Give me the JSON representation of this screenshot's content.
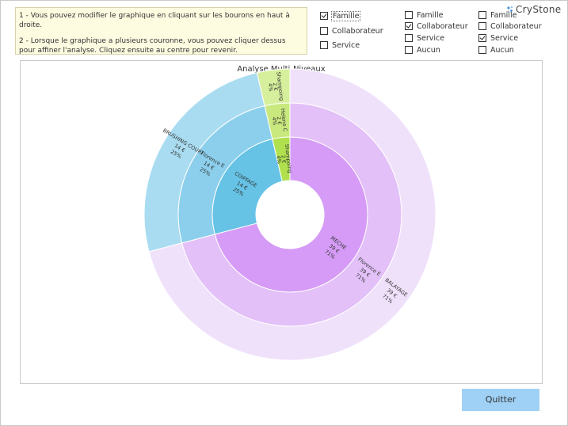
{
  "info": {
    "line1": "1 - Vous pouvez modifier le graphique en cliquant sur les bourons en haut à droite.",
    "line2": "2 - Lorsque le graphique a plusieurs couronne, vous pouvez cliquer dessus pour affiner l'analyse. Cliquez ensuite au centre pour revenir."
  },
  "level_groups": [
    {
      "options": [
        {
          "label": "Famille",
          "checked": true
        },
        {
          "label": "Collaborateur",
          "checked": false
        },
        {
          "label": "Service",
          "checked": false
        }
      ]
    },
    {
      "options": [
        {
          "label": "Famille",
          "checked": false
        },
        {
          "label": "Collaborateur",
          "checked": true
        },
        {
          "label": "Service",
          "checked": false
        },
        {
          "label": "Aucun",
          "checked": false
        }
      ]
    },
    {
      "options": [
        {
          "label": "Famille",
          "checked": false
        },
        {
          "label": "Collaborateur",
          "checked": false
        },
        {
          "label": "Service",
          "checked": true
        },
        {
          "label": "Aucun",
          "checked": false
        }
      ]
    }
  ],
  "brand": {
    "name": "CryStone",
    "icon": "sparkle-icon"
  },
  "chart_title": "Analyse Multi-Niveaux",
  "chart_data": {
    "type": "sunburst",
    "title": "Analyse Multi-Niveaux",
    "rings": [
      {
        "level": "Famille",
        "segments": [
          {
            "name": "MECHE",
            "value": 39,
            "unit": "€",
            "percent": "71%",
            "color": "#d59bf6"
          },
          {
            "name": "COIFFAGE",
            "value": 14,
            "unit": "€",
            "percent": "25%",
            "color": "#66c3e6"
          },
          {
            "name": "Shampoing",
            "value": 2,
            "unit": "€",
            "percent": "4%",
            "color": "#b1e04f"
          }
        ]
      },
      {
        "level": "Collaborateur",
        "segments": [
          {
            "name": "Florence E",
            "value": 39,
            "unit": "€",
            "percent": "71%",
            "color": "#e3c0f8"
          },
          {
            "name": "Florence E",
            "value": 14,
            "unit": "€",
            "percent": "25%",
            "color": "#8ccfec"
          },
          {
            "name": "Helene C",
            "value": 2,
            "unit": "€",
            "percent": "4%",
            "color": "#c9e87e"
          }
        ]
      },
      {
        "level": "Service",
        "segments": [
          {
            "name": "BALAYAGE",
            "value": 39,
            "unit": "€",
            "percent": "71%",
            "color": "#f0e1fb"
          },
          {
            "name": "BRUSHING COURT",
            "value": 14,
            "unit": "€",
            "percent": "25%",
            "color": "#a9dcf1"
          },
          {
            "name": "Shampoing",
            "value": 2,
            "unit": "€",
            "percent": "4%",
            "color": "#d6ef9c"
          }
        ]
      }
    ]
  },
  "quit_label": "Quitter"
}
